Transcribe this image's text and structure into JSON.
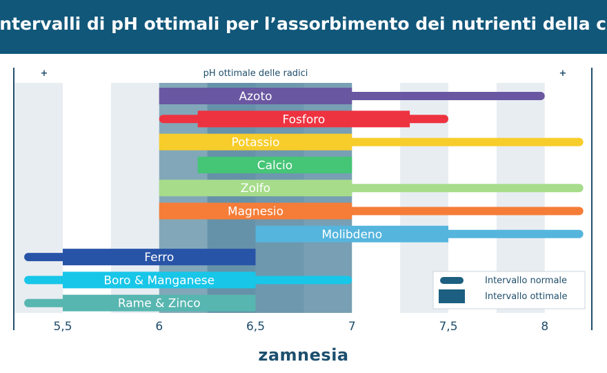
{
  "title": "Intervalli di pH ottimali per l’assorbimento dei nutrienti della cannabis",
  "brand": "zamnesia",
  "colors": {
    "header": "#11577a",
    "axis": "#1f4d6b",
    "stripe": "#e8edf2",
    "optimal_band": "#1c5f80"
  },
  "chart_data": {
    "type": "range-bar",
    "title": "Intervalli di pH ottimali per l’assorbimento dei nutrienti della cannabis",
    "optimal_band_label": "pH ottimale delle radici",
    "optimal_band": [
      6,
      7
    ],
    "edge_markers": [
      "+",
      "+"
    ],
    "xlim": [
      5.25,
      8.25
    ],
    "x_ticks": [
      "5,5",
      "6",
      "6,5",
      "7",
      "7,5",
      "8"
    ],
    "x_tick_values": [
      5.5,
      6,
      6.5,
      7,
      7.5,
      8
    ],
    "legend": {
      "position": "bottom-right",
      "normal_label": "Intervallo normale",
      "optimal_label": "Intervallo ottimale"
    },
    "series": [
      {
        "name": "Azoto",
        "color": "#6a57a1",
        "normal": [
          6,
          8
        ],
        "optimal": [
          6,
          7
        ]
      },
      {
        "name": "Fosforo",
        "color": "#ee3340",
        "normal": [
          6,
          7.5
        ],
        "optimal": [
          6.2,
          7.3
        ]
      },
      {
        "name": "Potassio",
        "color": "#f7cd2b",
        "normal": [
          6,
          8.2
        ],
        "optimal": [
          6,
          7
        ]
      },
      {
        "name": "Calcio",
        "color": "#45c576",
        "normal": [
          6.2,
          7
        ],
        "optimal": [
          6.2,
          7
        ]
      },
      {
        "name": "Zolfo",
        "color": "#a6dc8a",
        "normal": [
          6,
          8.2
        ],
        "optimal": [
          6,
          7
        ]
      },
      {
        "name": "Magnesio",
        "color": "#f57d38",
        "normal": [
          6,
          8.2
        ],
        "optimal": [
          6,
          7
        ]
      },
      {
        "name": "Molibdeno",
        "color": "#55b5dd",
        "normal": [
          6.5,
          8.2
        ],
        "optimal": [
          6.5,
          7.5
        ]
      },
      {
        "name": "Ferro",
        "color": "#2854a8",
        "normal": [
          5.3,
          6.5
        ],
        "optimal": [
          5.5,
          6.5
        ]
      },
      {
        "name": "Boro & Manganese",
        "color": "#18c6e8",
        "normal": [
          5.3,
          7
        ],
        "optimal": [
          5.5,
          6.5
        ]
      },
      {
        "name": "Rame & Zinco",
        "color": "#58b6b0",
        "normal": [
          5.3,
          6.5
        ],
        "optimal": [
          5.5,
          6.5
        ]
      }
    ]
  }
}
